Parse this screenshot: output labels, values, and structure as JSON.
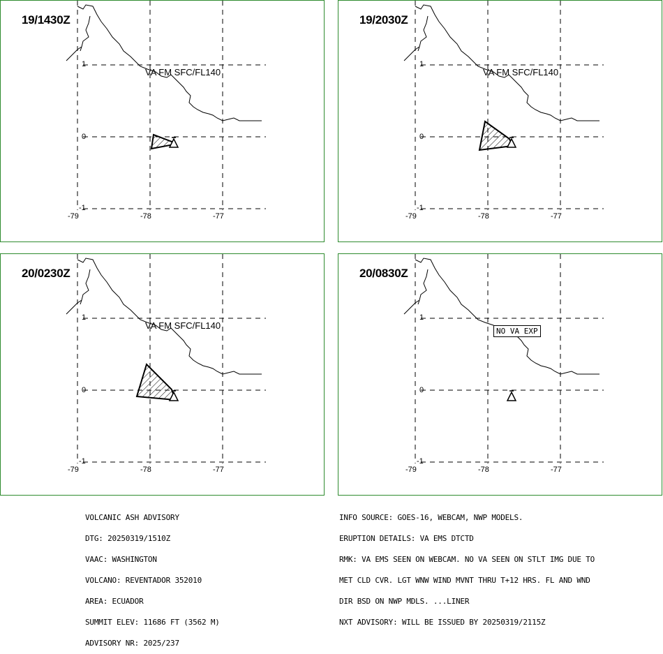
{
  "panels": [
    {
      "time": "19/1430Z",
      "label": "VA FM SFC/FL140"
    },
    {
      "time": "19/2030Z",
      "label": "VA FM SFC/FL140"
    },
    {
      "time": "20/0230Z",
      "label": "VA FM SFC/FL140"
    },
    {
      "time": "20/0830Z",
      "label": "NO VA EXP"
    }
  ],
  "axes": {
    "lon_labels": [
      "-79",
      "-78",
      "-77"
    ],
    "lat_labels": [
      "1",
      "0",
      "-1"
    ]
  },
  "colors": {
    "panel_border": "#2e8b2e",
    "ink": "#000000"
  },
  "advisory_left": [
    "VOLCANIC ASH ADVISORY",
    "DTG: 20250319/1510Z",
    "VAAC: WASHINGTON",
    "VOLCANO: REVENTADOR 352010",
    "AREA: ECUADOR",
    "SUMMIT ELEV: 11686 FT (3562 M)",
    "ADVISORY NR: 2025/237"
  ],
  "advisory_right": [
    "INFO SOURCE: GOES-16, WEBCAM, NWP MODELS.",
    "ERUPTION DETAILS: VA EMS DTCTD",
    "RMK: VA EMS SEEN ON WEBCAM. NO VA SEEN ON STLT IMG DUE TO",
    "MET CLD CVR. LGT WNW WIND MVNT THRU T+12 HRS. FL AND WND",
    "DIR BSD ON NWP MDLS. ...LINER",
    "NXT ADVISORY: WILL BE ISSUED BY 20250319/2115Z"
  ]
}
